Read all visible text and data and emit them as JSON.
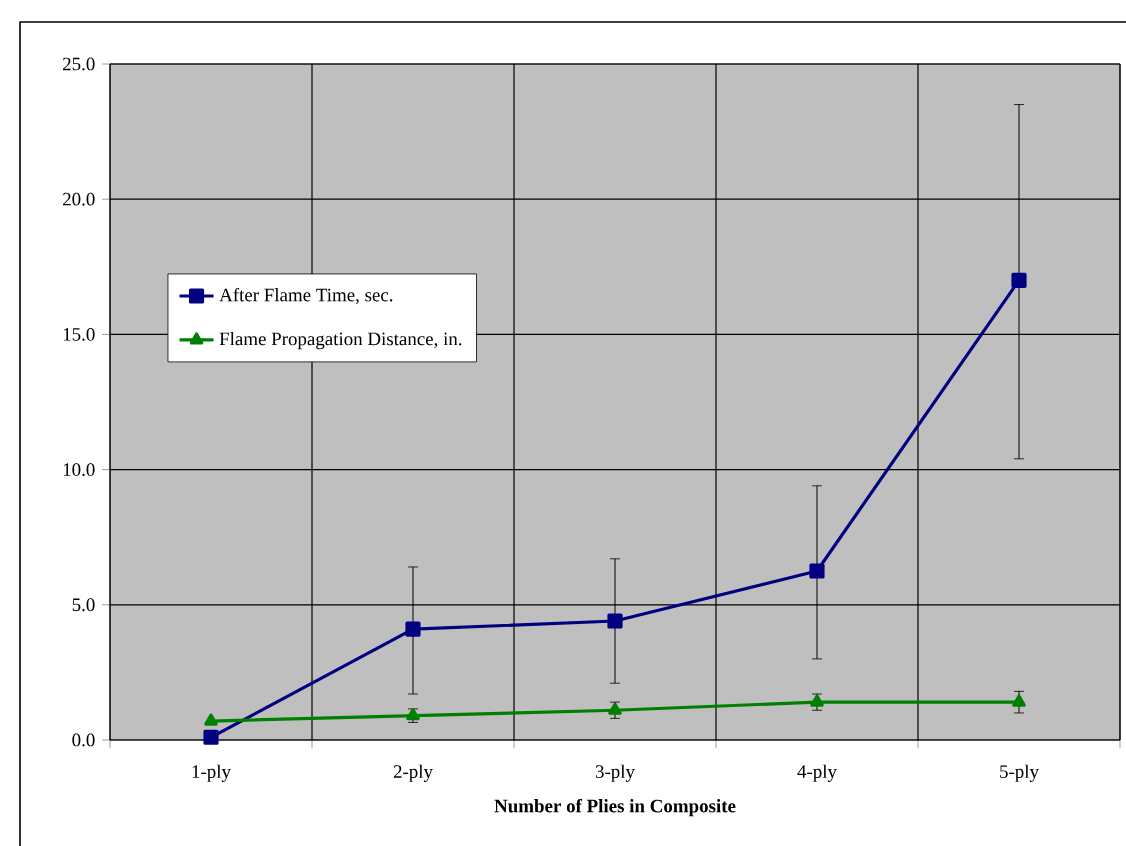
{
  "chart_data": {
    "type": "line",
    "xlabel": "Number of Plies in Composite",
    "categories": [
      "1-ply",
      "2-ply",
      "3-ply",
      "4-ply",
      "5-ply"
    ],
    "ylim": [
      0,
      25
    ],
    "yticks": [
      {
        "value": 0,
        "label": "0.0"
      },
      {
        "value": 5,
        "label": "5.0"
      },
      {
        "value": 10,
        "label": "10.0"
      },
      {
        "value": 15,
        "label": "15.0"
      },
      {
        "value": 20,
        "label": "20.0"
      },
      {
        "value": 25,
        "label": "25.0"
      }
    ],
    "grid": true,
    "legend": "left",
    "line_style": "solid",
    "series": [
      {
        "name": "After Flame Time, sec.",
        "color": "#000080",
        "marker": "square",
        "values": [
          0.1,
          4.1,
          4.4,
          6.25,
          17.0
        ],
        "errors": [
          null,
          [
            1.7,
            6.4
          ],
          [
            2.1,
            6.7
          ],
          [
            3.0,
            9.4
          ],
          [
            10.4,
            23.5
          ]
        ]
      },
      {
        "name": "Flame Propagation Distance, in.",
        "color": "#008000",
        "marker": "triangle",
        "values": [
          0.7,
          0.9,
          1.1,
          1.4,
          1.4
        ],
        "errors": [
          null,
          0.25,
          0.3,
          0.3,
          0.4
        ]
      }
    ]
  }
}
